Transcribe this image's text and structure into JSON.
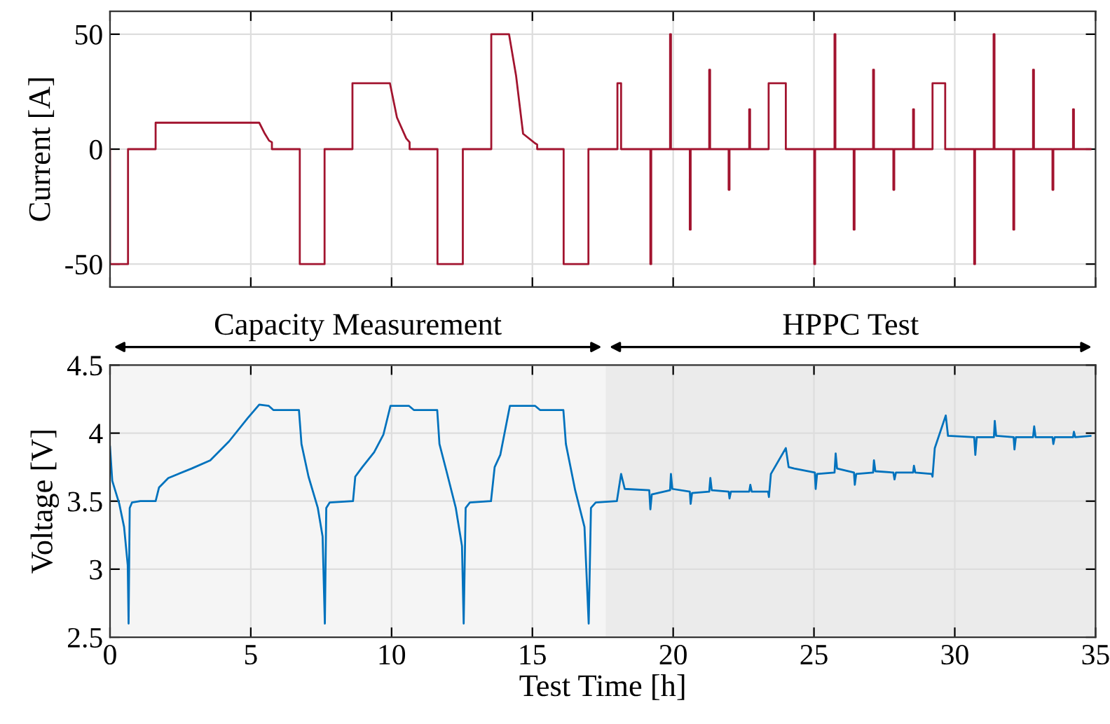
{
  "chart_data": [
    {
      "type": "line",
      "ylabel": "Current [A]",
      "xlim": [
        0,
        35
      ],
      "xticks": [
        0,
        5,
        10,
        15,
        20,
        25,
        30,
        35
      ],
      "ylim": [
        -60,
        60
      ],
      "yticks": [
        {
          "value": -50,
          "label": "-50"
        },
        0,
        50
      ],
      "grid": true,
      "tick_labels": "y",
      "legend": false,
      "series": [
        {
          "color": "#a2142f",
          "x": [
            0,
            0,
            0.64,
            0.64,
            1.62,
            1.62,
            5.3,
            5.5,
            5.65,
            5.75,
            5.75,
            6.74,
            6.74,
            7.62,
            7.62,
            8.61,
            8.61,
            9.94,
            10.19,
            10.52,
            10.64,
            10.64,
            11.63,
            11.63,
            12.53,
            12.53,
            13.54,
            13.54,
            14.17,
            14.42,
            14.67,
            15.09,
            15.17,
            15.17,
            16.11,
            16.11,
            16.99,
            16.99,
            18.02,
            18.02,
            18.15,
            18.15,
            19.19,
            19.19,
            19.22,
            19.22,
            19.89,
            19.89,
            19.92,
            19.92,
            20.59,
            20.59,
            20.62,
            20.62,
            21.28,
            21.28,
            21.31,
            21.31,
            21.97,
            21.97,
            22.0,
            22.0,
            22.7,
            22.7,
            22.73,
            22.73,
            23.39,
            23.39,
            24.0,
            24.0,
            25.01,
            25.01,
            25.04,
            25.04,
            25.73,
            25.73,
            25.76,
            25.76,
            26.41,
            26.41,
            26.44,
            26.44,
            27.1,
            27.1,
            27.13,
            27.13,
            27.82,
            27.82,
            27.85,
            27.85,
            28.52,
            28.52,
            28.55,
            28.55,
            29.21,
            29.21,
            29.66,
            29.66,
            30.69,
            30.69,
            30.72,
            30.72,
            31.38,
            31.38,
            31.41,
            31.41,
            32.08,
            32.08,
            32.11,
            32.11,
            32.78,
            32.78,
            32.81,
            32.81,
            33.47,
            33.47,
            33.5,
            33.5,
            34.2,
            34.2,
            34.23,
            34.23,
            34.82
          ],
          "values": [
            0,
            -50,
            -50,
            0,
            0,
            11.5,
            11.5,
            6.7,
            3.7,
            3.0,
            0,
            0,
            -50,
            -50,
            0,
            0,
            28.7,
            28.7,
            13.8,
            4.7,
            3.0,
            0,
            0,
            -50,
            -50,
            0,
            0,
            50,
            50,
            32,
            6.7,
            2.6,
            2.0,
            0,
            0,
            -50,
            -50,
            0,
            0,
            28.7,
            28.7,
            0,
            0,
            -50,
            -50,
            0,
            0,
            50,
            50,
            0,
            0,
            -35,
            -35,
            0,
            0,
            34.5,
            34.5,
            0,
            0,
            -17.7,
            -17.7,
            0,
            0,
            17.3,
            17.3,
            0,
            0,
            28.7,
            28.7,
            0,
            0,
            -50,
            -50,
            0,
            0,
            50,
            50,
            0,
            0,
            -35,
            -35,
            0,
            0,
            34.5,
            34.5,
            0,
            0,
            -17.7,
            -17.7,
            0,
            0,
            17.3,
            17.3,
            0,
            0,
            28.7,
            28.7,
            0,
            0,
            -50,
            -50,
            0,
            0,
            50,
            50,
            0,
            0,
            -35,
            -35,
            0,
            0,
            34.5,
            34.5,
            0,
            0,
            -17.7,
            -17.7,
            0,
            0,
            17.3,
            17.3,
            0,
            0
          ]
        }
      ]
    },
    {
      "type": "line",
      "xlabel": "Test Time [h]",
      "ylabel": "Voltage [V]",
      "xlim": [
        0,
        35
      ],
      "xticks": [
        0,
        5,
        10,
        15,
        20,
        25,
        30,
        35
      ],
      "ylim": [
        2.5,
        4.5
      ],
      "yticks": [
        2.5,
        3,
        3.5,
        4,
        4.5
      ],
      "grid": true,
      "legend": false,
      "bands": [
        {
          "axis": "x",
          "from": 0,
          "to": 17.6,
          "label": "Capacity Measurement",
          "color": "#f5f5f5"
        },
        {
          "axis": "x",
          "from": 17.6,
          "to": 35,
          "label": "HPPC Test",
          "color": "#ebebeb"
        }
      ],
      "series": [
        {
          "color": "#0072bd",
          "x": [
            0,
            0.08,
            0.33,
            0.5,
            0.63,
            0.66,
            0.7,
            0.78,
            1.08,
            1.62,
            1.74,
            2.07,
            2.9,
            3.56,
            4.23,
            4.89,
            5.3,
            5.64,
            5.8,
            6.71,
            6.8,
            7.05,
            7.38,
            7.55,
            7.63,
            7.68,
            7.8,
            8.63,
            8.71,
            8.96,
            9.38,
            9.71,
            9.96,
            10.62,
            10.79,
            11.62,
            11.7,
            11.95,
            12.28,
            12.5,
            12.56,
            12.63,
            12.78,
            13.53,
            13.66,
            13.86,
            14.2,
            15.1,
            15.27,
            16.1,
            16.19,
            16.52,
            16.85,
            17.0,
            17.08,
            17.25,
            18.0,
            18.15,
            18.28,
            19.15,
            19.19,
            19.24,
            19.89,
            19.92,
            19.97,
            20.59,
            20.62,
            20.67,
            21.28,
            21.32,
            21.37,
            21.97,
            22.0,
            22.05,
            22.7,
            22.74,
            22.79,
            23.37,
            23.4,
            23.47,
            24.0,
            24.1,
            24.3,
            25.03,
            25.06,
            25.11,
            25.73,
            25.77,
            25.82,
            26.42,
            26.45,
            26.5,
            27.1,
            27.13,
            27.18,
            27.82,
            27.86,
            27.91,
            28.52,
            28.55,
            28.6,
            29.18,
            29.21,
            29.29,
            29.68,
            29.76,
            30.69,
            30.73,
            30.78,
            31.39,
            31.42,
            31.47,
            32.09,
            32.12,
            32.17,
            32.78,
            32.82,
            32.87,
            33.47,
            33.5,
            33.55,
            34.2,
            34.23,
            34.28,
            34.82
          ],
          "values": [
            3.9,
            3.65,
            3.48,
            3.31,
            3.03,
            2.6,
            3.45,
            3.49,
            3.5,
            3.5,
            3.6,
            3.67,
            3.74,
            3.8,
            3.94,
            4.11,
            4.21,
            4.2,
            4.17,
            4.17,
            3.92,
            3.68,
            3.45,
            3.24,
            2.6,
            3.45,
            3.49,
            3.5,
            3.68,
            3.75,
            3.86,
            3.99,
            4.2,
            4.2,
            4.17,
            4.17,
            3.92,
            3.72,
            3.45,
            3.17,
            2.6,
            3.45,
            3.49,
            3.5,
            3.75,
            3.84,
            4.2,
            4.2,
            4.17,
            4.17,
            3.92,
            3.58,
            3.31,
            2.6,
            3.45,
            3.49,
            3.5,
            3.7,
            3.59,
            3.58,
            3.44,
            3.55,
            3.58,
            3.7,
            3.59,
            3.57,
            3.48,
            3.56,
            3.57,
            3.67,
            3.58,
            3.57,
            3.52,
            3.57,
            3.57,
            3.62,
            3.57,
            3.57,
            3.53,
            3.7,
            3.89,
            3.75,
            3.74,
            3.71,
            3.59,
            3.7,
            3.71,
            3.85,
            3.74,
            3.71,
            3.62,
            3.7,
            3.71,
            3.8,
            3.72,
            3.71,
            3.66,
            3.71,
            3.71,
            3.76,
            3.71,
            3.7,
            3.68,
            3.89,
            4.13,
            3.98,
            3.97,
            3.84,
            3.97,
            3.97,
            4.09,
            3.98,
            3.97,
            3.88,
            3.97,
            3.97,
            4.05,
            3.97,
            3.97,
            3.92,
            3.97,
            3.97,
            4.01,
            3.97,
            3.98
          ]
        }
      ]
    }
  ]
}
